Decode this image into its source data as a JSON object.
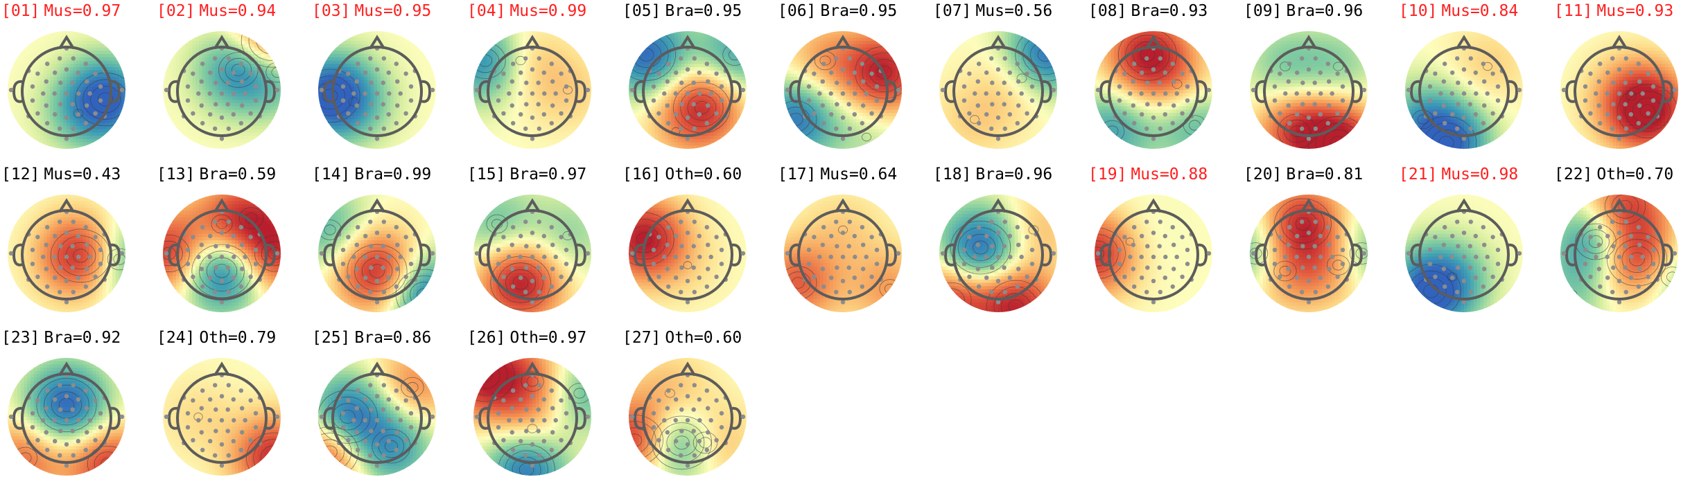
{
  "figure": {
    "components": [
      {
        "id": "[01]",
        "class": "Mus",
        "score": "0.97",
        "flagged": true,
        "hot": [
          [
            0.83,
            0.58,
            -1.0
          ],
          [
            0.6,
            0.7,
            -0.25
          ]
        ]
      },
      {
        "id": "[02]",
        "class": "Mus",
        "score": "0.94",
        "flagged": true,
        "hot": [
          [
            0.64,
            0.33,
            -0.75
          ],
          [
            0.92,
            0.08,
            1.0
          ],
          [
            0.97,
            0.35,
            -0.5
          ]
        ]
      },
      {
        "id": "[03]",
        "class": "Mus",
        "score": "0.95",
        "flagged": true,
        "hot": [
          [
            0.1,
            0.55,
            -1.0
          ],
          [
            0.3,
            0.6,
            -0.3
          ]
        ]
      },
      {
        "id": "[04]",
        "class": "Mus",
        "score": "0.99",
        "flagged": true,
        "hot": [
          [
            0.1,
            0.25,
            -0.8
          ],
          [
            0.4,
            0.25,
            0.3
          ],
          [
            0.8,
            0.5,
            0.2
          ]
        ]
      },
      {
        "id": "[05]",
        "class": "Bra",
        "score": "0.95",
        "flagged": false,
        "hot": [
          [
            0.62,
            0.65,
            0.9
          ],
          [
            0.15,
            0.2,
            -0.95
          ],
          [
            0.9,
            0.2,
            -0.6
          ],
          [
            0.4,
            0.85,
            0.1
          ]
        ]
      },
      {
        "id": "[06]",
        "class": "Bra",
        "score": "0.95",
        "flagged": false,
        "hot": [
          [
            0.85,
            0.35,
            0.95
          ],
          [
            0.1,
            0.75,
            -0.85
          ],
          [
            0.35,
            0.25,
            0.4
          ],
          [
            0.7,
            0.9,
            -0.2
          ]
        ]
      },
      {
        "id": "[07]",
        "class": "Mus",
        "score": "0.56",
        "flagged": false,
        "hot": [
          [
            0.9,
            0.2,
            -1.0
          ],
          [
            0.7,
            0.4,
            0.3
          ],
          [
            0.3,
            0.75,
            0.2
          ]
        ]
      },
      {
        "id": "[08]",
        "class": "Bra",
        "score": "0.93",
        "flagged": false,
        "hot": [
          [
            0.45,
            0.2,
            0.95
          ],
          [
            0.15,
            0.85,
            -0.6
          ],
          [
            0.85,
            0.8,
            -0.5
          ],
          [
            0.7,
            0.45,
            0.3
          ]
        ]
      },
      {
        "id": "[09]",
        "class": "Bra",
        "score": "0.96",
        "flagged": false,
        "hot": [
          [
            0.75,
            0.95,
            1.0
          ],
          [
            0.4,
            0.85,
            0.7
          ],
          [
            0.3,
            0.3,
            -0.35
          ],
          [
            0.75,
            0.3,
            -0.3
          ]
        ]
      },
      {
        "id": "[10]",
        "class": "Mus",
        "score": "0.84",
        "flagged": true,
        "hot": [
          [
            0.35,
            0.95,
            -1.0
          ],
          [
            0.15,
            0.75,
            -0.4
          ],
          [
            0.7,
            0.3,
            0.2
          ]
        ]
      },
      {
        "id": "[11]",
        "class": "Mus",
        "score": "0.93",
        "flagged": true,
        "hot": [
          [
            0.74,
            0.68,
            1.0
          ],
          [
            0.6,
            0.55,
            0.35
          ]
        ]
      },
      {
        "id": "[12]",
        "class": "Mus",
        "score": "0.43",
        "flagged": false,
        "hot": [
          [
            0.62,
            0.52,
            1.0
          ],
          [
            0.95,
            0.55,
            -0.6
          ]
        ]
      },
      {
        "id": "[13]",
        "class": "Bra",
        "score": "0.59",
        "flagged": false,
        "hot": [
          [
            0.5,
            0.65,
            -1.0
          ],
          [
            0.05,
            0.5,
            0.85
          ],
          [
            0.95,
            0.5,
            0.8
          ],
          [
            0.5,
            0.25,
            0.4
          ],
          [
            0.75,
            0.2,
            0.6
          ]
        ]
      },
      {
        "id": "[14]",
        "class": "Bra",
        "score": "0.99",
        "flagged": false,
        "hot": [
          [
            0.5,
            0.65,
            1.0
          ],
          [
            0.9,
            0.85,
            -0.9
          ],
          [
            0.1,
            0.3,
            -0.5
          ]
        ]
      },
      {
        "id": "[15]",
        "class": "Bra",
        "score": "0.97",
        "flagged": false,
        "hot": [
          [
            0.4,
            0.75,
            1.0
          ],
          [
            0.2,
            0.25,
            -0.4
          ],
          [
            0.8,
            0.35,
            -0.3
          ]
        ]
      },
      {
        "id": "[16]",
        "class": "Oth",
        "score": "0.60",
        "flagged": false,
        "hot": [
          [
            0.13,
            0.38,
            1.0
          ],
          [
            0.5,
            0.6,
            0.1
          ]
        ]
      },
      {
        "id": "[17]",
        "class": "Mus",
        "score": "0.64",
        "flagged": false,
        "hot": [
          [
            0.12,
            0.75,
            0.65
          ],
          [
            0.9,
            0.8,
            0.4
          ],
          [
            0.5,
            0.3,
            0.2
          ]
        ]
      },
      {
        "id": "[18]",
        "class": "Bra",
        "score": "0.96",
        "flagged": false,
        "hot": [
          [
            0.35,
            0.45,
            -1.0
          ],
          [
            0.65,
            0.95,
            0.95
          ],
          [
            0.1,
            0.9,
            0.8
          ],
          [
            0.8,
            0.3,
            0.3
          ]
        ]
      },
      {
        "id": "[19]",
        "class": "Mus",
        "score": "0.88",
        "flagged": true,
        "hot": [
          [
            0.02,
            0.5,
            0.9
          ],
          [
            0.3,
            0.4,
            -0.1
          ]
        ]
      },
      {
        "id": "[20]",
        "class": "Bra",
        "score": "0.81",
        "flagged": false,
        "hot": [
          [
            0.45,
            0.25,
            0.9
          ],
          [
            0.3,
            0.65,
            0.5
          ],
          [
            0.75,
            0.6,
            0.5
          ],
          [
            0.05,
            0.5,
            -0.6
          ],
          [
            0.95,
            0.5,
            -0.6
          ]
        ]
      },
      {
        "id": "[21]",
        "class": "Mus",
        "score": "0.98",
        "flagged": true,
        "hot": [
          [
            0.22,
            0.82,
            -1.0
          ],
          [
            0.4,
            0.7,
            -0.3
          ]
        ]
      },
      {
        "id": "[22]",
        "class": "Oth",
        "score": "0.70",
        "flagged": false,
        "hot": [
          [
            0.65,
            0.55,
            1.0
          ],
          [
            0.3,
            0.4,
            -0.8
          ],
          [
            0.55,
            0.1,
            0.8
          ],
          [
            0.95,
            0.7,
            -0.5
          ],
          [
            0.1,
            0.85,
            -0.3
          ]
        ]
      },
      {
        "id": "[23]",
        "class": "Bra",
        "score": "0.92",
        "flagged": false,
        "hot": [
          [
            0.5,
            0.4,
            -1.0
          ],
          [
            0.85,
            0.9,
            0.8
          ],
          [
            0.15,
            0.85,
            0.6
          ]
        ]
      },
      {
        "id": "[24]",
        "class": "Oth",
        "score": "0.79",
        "flagged": false,
        "hot": [
          [
            0.95,
            0.85,
            0.9
          ],
          [
            0.3,
            0.5,
            0.15
          ]
        ]
      },
      {
        "id": "[25]",
        "class": "Bra",
        "score": "0.86",
        "flagged": false,
        "hot": [
          [
            0.25,
            0.5,
            -1.0
          ],
          [
            0.62,
            0.75,
            -0.7
          ],
          [
            0.1,
            0.8,
            0.9
          ],
          [
            0.8,
            0.25,
            0.5
          ]
        ]
      },
      {
        "id": "[26]",
        "class": "Oth",
        "score": "0.97",
        "flagged": false,
        "hot": [
          [
            0.1,
            0.15,
            0.95
          ],
          [
            0.45,
            0.95,
            -0.9
          ],
          [
            0.9,
            0.3,
            -0.5
          ],
          [
            0.5,
            0.2,
            0.5
          ],
          [
            0.5,
            0.6,
            0.3
          ]
        ]
      },
      {
        "id": "[27]",
        "class": "Oth",
        "score": "0.60",
        "flagged": false,
        "hot": [
          [
            0.45,
            0.72,
            -1.0
          ],
          [
            0.05,
            0.7,
            0.9
          ],
          [
            0.65,
            0.72,
            0.6
          ],
          [
            0.35,
            0.3,
            0.3
          ]
        ]
      }
    ],
    "colors": {
      "flagged_text": "#ff1f1f",
      "normal_text": "#000000",
      "head_outline": "#5c5c5c",
      "sensor_dot": "#8c8c8c",
      "contour": "#3a3a3a"
    }
  }
}
